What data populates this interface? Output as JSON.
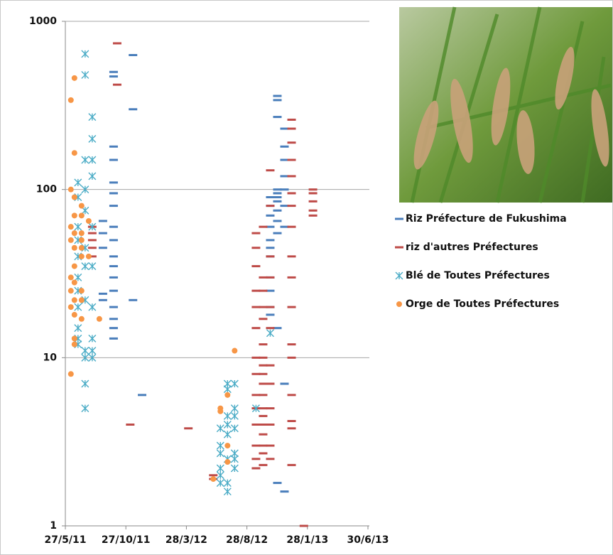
{
  "chart_data": {
    "type": "scatter",
    "log_scale_y": true,
    "grid": true,
    "xlim": [
      "2011-05-27",
      "2013-06-30"
    ],
    "xticks": [
      {
        "value": "2011-05-27",
        "label": "27/5/11"
      },
      {
        "value": "2011-10-27",
        "label": "27/10/11"
      },
      {
        "value": "2012-03-28",
        "label": "28/3/12"
      },
      {
        "value": "2012-08-28",
        "label": "28/8/12"
      },
      {
        "value": "2013-01-28",
        "label": "28/1/13"
      },
      {
        "value": "2013-06-30",
        "label": "30/6/13"
      }
    ],
    "ylim": [
      1,
      1000
    ],
    "yticks": [
      1,
      10,
      100,
      1000
    ],
    "series": [
      {
        "name": "Riz Préfecture de Fukushima",
        "color": "#4a7ebb",
        "marker": "dash",
        "x": [
          "2011-08-30",
          "2011-08-30",
          "2011-08-30",
          "2011-08-30",
          "2011-08-30",
          "2011-09-26",
          "2011-09-26",
          "2011-09-26",
          "2011-09-26",
          "2011-09-26",
          "2011-09-26",
          "2011-09-26",
          "2011-09-26",
          "2011-09-26",
          "2011-09-26",
          "2011-09-26",
          "2011-09-26",
          "2011-09-26",
          "2011-09-26",
          "2011-09-26",
          "2011-09-26",
          "2011-09-26",
          "2011-11-14",
          "2011-11-14",
          "2011-11-14",
          "2011-12-07",
          "2012-10-26",
          "2012-10-26",
          "2012-10-26",
          "2012-10-26",
          "2012-10-26",
          "2012-10-26",
          "2012-10-26",
          "2012-10-26",
          "2012-10-26",
          "2012-10-26",
          "2012-10-26",
          "2012-11-13",
          "2012-11-13",
          "2012-11-13",
          "2012-11-13",
          "2012-11-13",
          "2012-11-13",
          "2012-11-13",
          "2012-11-13",
          "2012-11-13",
          "2012-11-13",
          "2012-11-13",
          "2012-11-13",
          "2012-12-01",
          "2012-12-01",
          "2012-12-01",
          "2012-12-01",
          "2012-12-01",
          "2012-12-01",
          "2012-12-01",
          "2012-12-01",
          "2012-12-01"
        ],
        "values": [
          65,
          55,
          45,
          24,
          22,
          500,
          470,
          180,
          150,
          110,
          95,
          80,
          60,
          50,
          40,
          35,
          30,
          25,
          20,
          17,
          15,
          13,
          630,
          300,
          22,
          6,
          90,
          80,
          70,
          60,
          50,
          45,
          40,
          30,
          25,
          20,
          18,
          360,
          340,
          270,
          100,
          95,
          90,
          85,
          75,
          65,
          55,
          15,
          1.8,
          230,
          180,
          150,
          120,
          100,
          80,
          60,
          7,
          1.6
        ]
      },
      {
        "name": "riz d'autres Préfectures",
        "color": "#be4b48",
        "marker": "dash",
        "x": [
          "2011-08-03",
          "2011-08-03",
          "2011-08-03",
          "2011-08-03",
          "2011-08-03",
          "2011-10-05",
          "2011-10-05",
          "2011-11-07",
          "2012-04-02",
          "2012-06-04",
          "2012-06-04",
          "2012-09-20",
          "2012-09-20",
          "2012-09-20",
          "2012-09-20",
          "2012-09-20",
          "2012-09-20",
          "2012-09-20",
          "2012-09-20",
          "2012-09-20",
          "2012-09-20",
          "2012-09-20",
          "2012-09-20",
          "2012-09-20",
          "2012-09-20",
          "2012-10-08",
          "2012-10-08",
          "2012-10-08",
          "2012-10-08",
          "2012-10-08",
          "2012-10-08",
          "2012-10-08",
          "2012-10-08",
          "2012-10-08",
          "2012-10-08",
          "2012-10-08",
          "2012-10-08",
          "2012-10-08",
          "2012-10-08",
          "2012-10-08",
          "2012-10-08",
          "2012-10-08",
          "2012-10-08",
          "2012-10-26",
          "2012-10-26",
          "2012-10-26",
          "2012-10-26",
          "2012-10-26",
          "2012-10-26",
          "2012-10-26",
          "2012-10-26",
          "2012-10-26",
          "2012-10-26",
          "2012-10-26",
          "2012-10-26",
          "2012-12-19",
          "2012-12-19",
          "2012-12-19",
          "2012-12-19",
          "2012-12-19",
          "2012-12-19",
          "2012-12-19",
          "2012-12-19",
          "2012-12-19",
          "2012-12-19",
          "2012-12-19",
          "2012-12-19",
          "2012-12-19",
          "2012-12-19",
          "2012-12-19",
          "2012-12-19",
          "2012-12-19",
          "2013-01-19",
          "2013-02-11",
          "2013-02-11",
          "2013-02-11",
          "2013-02-11",
          "2013-02-11"
        ],
        "values": [
          60,
          55,
          50,
          45,
          40,
          740,
          420,
          4,
          3.8,
          2,
          1.9,
          55,
          45,
          35,
          25,
          20,
          15,
          10,
          8,
          6,
          5,
          4,
          3,
          2.5,
          2.2,
          60,
          30,
          25,
          20,
          17,
          12,
          10,
          9,
          8,
          7,
          6,
          5,
          4.5,
          4,
          3.5,
          3,
          2.7,
          2.3,
          130,
          80,
          40,
          30,
          20,
          15,
          9,
          7,
          5,
          4,
          3,
          2.5,
          260,
          230,
          190,
          150,
          120,
          95,
          80,
          60,
          40,
          30,
          20,
          12,
          10,
          6,
          4.2,
          3.8,
          2.3,
          1,
          100,
          95,
          85,
          75,
          70
        ]
      },
      {
        "name": "Blé de Toutes Préfectures",
        "color": "#4bacc6",
        "marker": "asterisk",
        "x": [
          "2011-06-28",
          "2011-06-28",
          "2011-06-28",
          "2011-06-28",
          "2011-06-28",
          "2011-06-28",
          "2011-06-28",
          "2011-06-28",
          "2011-06-28",
          "2011-06-28",
          "2011-06-28",
          "2011-07-16",
          "2011-07-16",
          "2011-07-16",
          "2011-07-16",
          "2011-07-16",
          "2011-07-16",
          "2011-07-16",
          "2011-07-16",
          "2011-07-16",
          "2011-07-16",
          "2011-07-16",
          "2011-07-16",
          "2011-08-03",
          "2011-08-03",
          "2011-08-03",
          "2011-08-03",
          "2011-08-03",
          "2011-08-03",
          "2011-08-03",
          "2011-08-03",
          "2011-08-03",
          "2011-08-03",
          "2012-06-22",
          "2012-06-22",
          "2012-06-22",
          "2012-06-22",
          "2012-06-22",
          "2012-06-22",
          "2012-07-10",
          "2012-07-10",
          "2012-07-10",
          "2012-07-10",
          "2012-07-10",
          "2012-07-10",
          "2012-07-10",
          "2012-07-10",
          "2012-07-28",
          "2012-07-28",
          "2012-07-28",
          "2012-07-28",
          "2012-07-28",
          "2012-07-28",
          "2012-07-28",
          "2012-09-20",
          "2012-10-26"
        ],
        "values": [
          110,
          90,
          60,
          50,
          40,
          30,
          25,
          20,
          15,
          13,
          12,
          640,
          480,
          150,
          100,
          75,
          45,
          35,
          22,
          11,
          10,
          7,
          5,
          270,
          200,
          150,
          120,
          60,
          35,
          20,
          13,
          11,
          10,
          3.8,
          3,
          2.7,
          2.2,
          2,
          1.8,
          7,
          6.5,
          4.5,
          4,
          3.5,
          2.5,
          1.8,
          1.6,
          7,
          5,
          4.5,
          3.8,
          2.7,
          2.5,
          2.2,
          5,
          14
        ]
      },
      {
        "name": "Orge de Toutes Préfectures",
        "color": "#f79646",
        "marker": "circle",
        "x": [
          "2011-06-10",
          "2011-06-10",
          "2011-06-10",
          "2011-06-10",
          "2011-06-10",
          "2011-06-10",
          "2011-06-10",
          "2011-06-10",
          "2011-06-19",
          "2011-06-19",
          "2011-06-19",
          "2011-06-19",
          "2011-06-19",
          "2011-06-19",
          "2011-06-19",
          "2011-06-19",
          "2011-06-19",
          "2011-06-19",
          "2011-06-19",
          "2011-06-19",
          "2011-07-07",
          "2011-07-07",
          "2011-07-07",
          "2011-07-07",
          "2011-07-07",
          "2011-07-07",
          "2011-07-07",
          "2011-07-07",
          "2011-07-07",
          "2011-07-25",
          "2011-07-25",
          "2011-08-21",
          "2012-06-04",
          "2012-06-22",
          "2012-06-22",
          "2012-07-10",
          "2012-07-10",
          "2012-07-10",
          "2012-07-28"
        ],
        "values": [
          340,
          100,
          60,
          50,
          30,
          25,
          20,
          8,
          460,
          165,
          90,
          70,
          55,
          45,
          35,
          28,
          22,
          18,
          13,
          12,
          80,
          70,
          55,
          50,
          45,
          40,
          25,
          22,
          17,
          65,
          40,
          17,
          1.9,
          5,
          4.8,
          6,
          3,
          2.4,
          11
        ]
      }
    ]
  }
}
